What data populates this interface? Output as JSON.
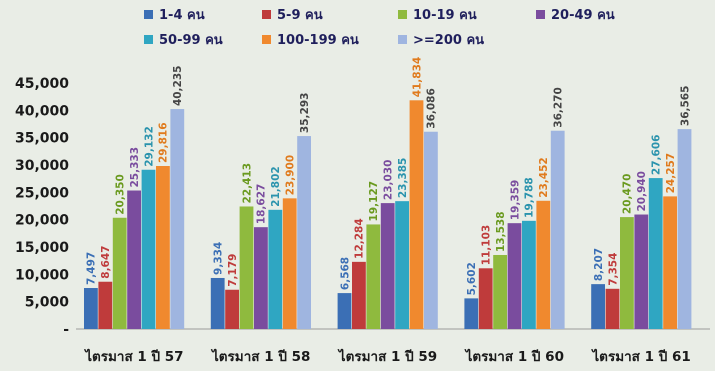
{
  "chart_data": {
    "type": "bar",
    "categories": [
      "ไตรมาส 1 ปี 57",
      "ไตรมาส 1 ปี 58",
      "ไตรมาส 1 ปี 59",
      "ไตรมาส 1 ปี 60",
      "ไตรมาส 1 ปี 61"
    ],
    "ylim": [
      0,
      45000
    ],
    "yticks": [
      "-",
      "5,000",
      "10,000",
      "15,000",
      "20,000",
      "25,000",
      "30,000",
      "35,000",
      "40,000",
      "45,000"
    ],
    "grid": false,
    "legend_position": "top",
    "series": [
      {
        "name": "1-4 คน",
        "color": "#3b6fb5",
        "labels": [
          "7,497",
          "9,334",
          "6,568",
          "5,602",
          "8,207"
        ],
        "values": [
          7497,
          9334,
          6568,
          5602,
          8207
        ]
      },
      {
        "name": "5-9 คน",
        "color": "#bf3b3b",
        "labels": [
          "8,647",
          "7,179",
          "12,284",
          "11,103",
          "7,354"
        ],
        "values": [
          8647,
          7179,
          12284,
          11103,
          7354
        ]
      },
      {
        "name": "10-19 คน",
        "color": "#8fba3e",
        "labels": [
          "20,350",
          "22,413",
          "19,127",
          "13,538",
          "20,470"
        ],
        "values": [
          20350,
          22413,
          19127,
          13538,
          20470
        ]
      },
      {
        "name": "20-49 คน",
        "color": "#7a4c9e",
        "labels": [
          "25,333",
          "18,627",
          "23,030",
          "19,359",
          "20,940"
        ],
        "values": [
          25333,
          18627,
          23030,
          19359,
          20940
        ]
      },
      {
        "name": "50-99 คน",
        "color": "#2fa6c2",
        "labels": [
          "29,132",
          "21,802",
          "23,385",
          "19,788",
          "27,606"
        ],
        "values": [
          29132,
          21802,
          23385,
          19788,
          27606
        ]
      },
      {
        "name": "100-199 คน",
        "color": "#f0892e",
        "labels": [
          "29,816",
          "23,900",
          "41,834",
          "23,452",
          "24,257"
        ],
        "values": [
          29816,
          23900,
          41834,
          23452,
          24257
        ]
      },
      {
        "name": ">=200 คน",
        "color": "#9fb5e0",
        "labels": [
          "40,235",
          "35,293",
          "36,086",
          "36,270",
          "36,565"
        ],
        "values": [
          40235,
          35293,
          36086,
          36270,
          36565
        ]
      }
    ],
    "label_colors": [
      "#3b6fb5",
      "#bf3b3b",
      "#6a9a1f",
      "#7a4c9e",
      "#2a93ad",
      "#e07a1c",
      "#444444"
    ]
  }
}
